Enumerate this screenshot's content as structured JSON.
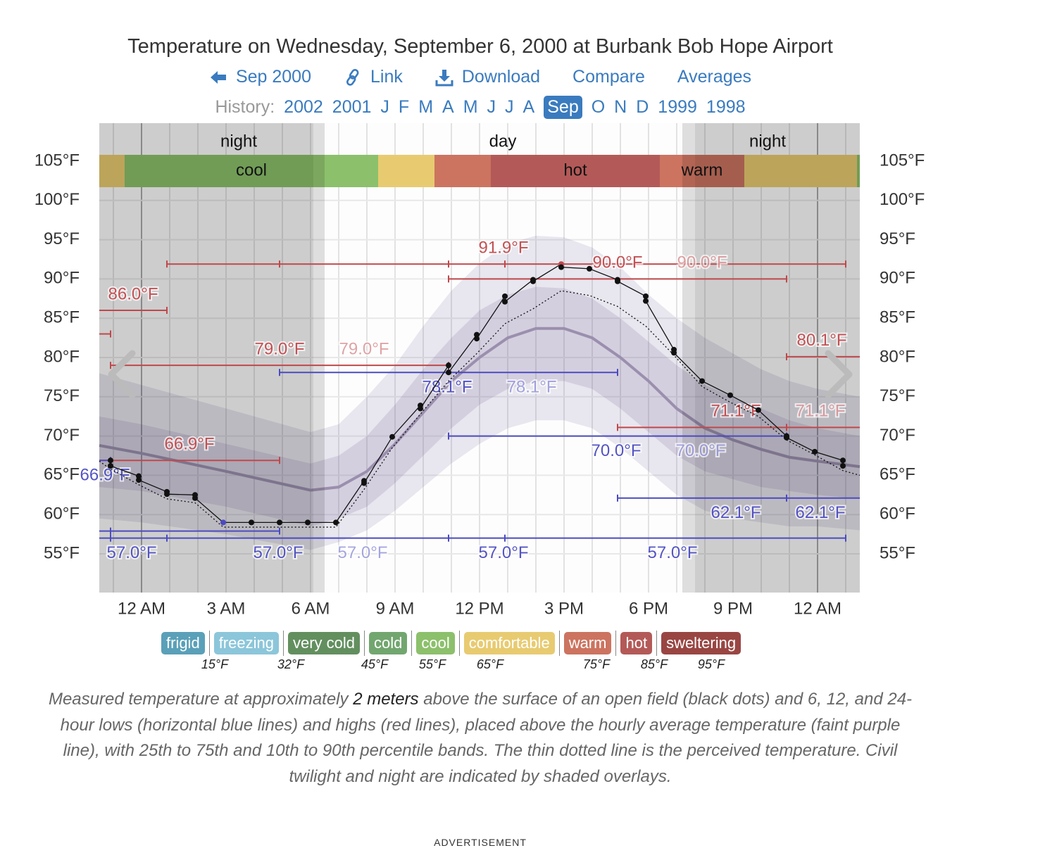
{
  "header": {
    "title": "Temperature on Wednesday, September 6, 2000 at Burbank Bob Hope Airport",
    "nav": {
      "back": "Sep 2000",
      "link": "Link",
      "download": "Download",
      "compare": "Compare",
      "averages": "Averages"
    },
    "history_label": "History:",
    "history": [
      "2002",
      "2001",
      "J",
      "F",
      "M",
      "A",
      "M",
      "J",
      "J",
      "A",
      "Sep",
      "O",
      "N",
      "D",
      "1999",
      "1998"
    ],
    "history_current": "Sep"
  },
  "chart_data": {
    "type": "line",
    "title": "Temperature on Wednesday, September 6, 2000 at Burbank Bob Hope Airport",
    "xlabel": "",
    "ylabel": "",
    "xlim_hours": [
      -1.5,
      25.5
    ],
    "ylim": [
      50,
      108
    ],
    "grid": true,
    "x_ticks": [
      {
        "h": 0,
        "label": "12 AM"
      },
      {
        "h": 3,
        "label": "3 AM"
      },
      {
        "h": 6,
        "label": "6 AM"
      },
      {
        "h": 9,
        "label": "9 AM"
      },
      {
        "h": 12,
        "label": "12 PM"
      },
      {
        "h": 15,
        "label": "3 PM"
      },
      {
        "h": 18,
        "label": "6 PM"
      },
      {
        "h": 21,
        "label": "9 PM"
      },
      {
        "h": 24,
        "label": "12 AM"
      }
    ],
    "y_ticks": [
      {
        "t": 105,
        "label": "105°F"
      },
      {
        "t": 100,
        "label": "100°F"
      },
      {
        "t": 95,
        "label": "95°F"
      },
      {
        "t": 90,
        "label": "90°F"
      },
      {
        "t": 85,
        "label": "85°F"
      },
      {
        "t": 80,
        "label": "80°F"
      },
      {
        "t": 75,
        "label": "75°F"
      },
      {
        "t": 70,
        "label": "70°F"
      },
      {
        "t": 65,
        "label": "65°F"
      },
      {
        "t": 60,
        "label": "60°F"
      },
      {
        "t": 55,
        "label": "55°F"
      }
    ],
    "daylight": [
      {
        "label": "night",
        "from": -1.5,
        "to": 6.1,
        "twilight_to": 6.5
      },
      {
        "label": "day",
        "from": 6.5,
        "to": 19.2
      },
      {
        "label": "night",
        "from": 19.65,
        "to": 25.5,
        "twilight_from": 19.2
      }
    ],
    "categories_bar": [
      {
        "from": -1.5,
        "to": -0.6,
        "cat": "comfortable"
      },
      {
        "from": -0.6,
        "to": 8.4,
        "cat": "cool",
        "label": "cool",
        "label_at": 3.9
      },
      {
        "from": 8.4,
        "to": 10.4,
        "cat": "comfortable"
      },
      {
        "from": 10.4,
        "to": 12.4,
        "cat": "warm"
      },
      {
        "from": 12.4,
        "to": 18.4,
        "cat": "hot",
        "label": "hot",
        "label_at": 15.4
      },
      {
        "from": 18.4,
        "to": 21.4,
        "cat": "warm",
        "label": "warm",
        "label_at": 19.9
      },
      {
        "from": 21.4,
        "to": 25.4,
        "cat": "comfortable"
      },
      {
        "from": 25.4,
        "to": 25.5,
        "cat": "cool"
      }
    ],
    "normals": {
      "columns": [
        "hour",
        "p10",
        "p25",
        "avg",
        "p75",
        "p90"
      ],
      "rows": [
        [
          -1.5,
          59.5,
          63.5,
          68.8,
          72.5,
          78
        ],
        [
          0,
          59,
          63,
          67.8,
          71.5,
          76.5
        ],
        [
          3,
          57.5,
          61,
          65.5,
          69,
          73.5
        ],
        [
          6,
          55.5,
          58.5,
          63.1,
          66.5,
          70.5
        ],
        [
          7,
          56.5,
          59.5,
          63.5,
          67.5,
          71.5
        ],
        [
          8,
          58,
          61,
          65.5,
          70,
          75
        ],
        [
          9,
          60.5,
          64,
          69,
          74,
          79
        ],
        [
          10,
          63.5,
          67.5,
          73,
          78.5,
          84
        ],
        [
          11,
          66.5,
          71,
          77,
          82.5,
          88.5
        ],
        [
          12,
          69,
          74,
          80,
          86,
          92
        ],
        [
          13,
          71,
          76,
          82.5,
          88,
          94.5
        ],
        [
          14,
          72,
          77,
          83.7,
          89,
          95.5
        ],
        [
          15,
          72,
          77,
          83.7,
          88.8,
          95.3
        ],
        [
          16,
          71,
          76,
          82.5,
          87.5,
          94
        ],
        [
          17,
          68.5,
          73.5,
          80,
          85,
          91.5
        ],
        [
          18,
          65.5,
          70.5,
          77,
          82,
          88
        ],
        [
          19,
          62.5,
          67.5,
          73.5,
          79,
          85
        ],
        [
          20,
          60.5,
          65.5,
          71,
          76.5,
          82.5
        ],
        [
          21,
          59.5,
          64.5,
          69.5,
          75,
          80.5
        ],
        [
          22,
          59,
          63.5,
          68.3,
          73.5,
          78.5
        ],
        [
          23,
          58.5,
          63,
          67.3,
          72,
          77
        ],
        [
          24,
          58.5,
          62.5,
          66.8,
          71,
          76
        ],
        [
          25.5,
          58,
          62,
          66.1,
          70,
          75
        ]
      ]
    },
    "observations": [
      [
        -1.1,
        66.9
      ],
      [
        -1.1,
        66.2
      ],
      [
        -0.1,
        64.9
      ],
      [
        -0.1,
        64.4
      ],
      [
        0.9,
        62.9
      ],
      [
        0.9,
        62.6
      ],
      [
        1.9,
        62.5
      ],
      [
        1.9,
        62.1
      ],
      [
        2.9,
        59.0
      ],
      [
        3.9,
        59.0
      ],
      [
        4.9,
        59.0
      ],
      [
        5.9,
        59.0
      ],
      [
        6.9,
        59.0
      ],
      [
        7.9,
        64.3
      ],
      [
        7.9,
        64.0
      ],
      [
        8.9,
        69.9
      ],
      [
        9.9,
        73.9
      ],
      [
        9.9,
        73.5
      ],
      [
        10.9,
        79.0
      ],
      [
        10.9,
        78.1
      ],
      [
        11.9,
        82.9
      ],
      [
        11.9,
        82.4
      ],
      [
        12.9,
        87.8
      ],
      [
        12.9,
        87.1
      ],
      [
        13.9,
        89.9
      ],
      [
        13.9,
        89.7
      ],
      [
        14.9,
        91.9
      ],
      [
        14.9,
        91.5
      ],
      [
        15.9,
        91.3
      ],
      [
        16.9,
        89.9
      ],
      [
        16.9,
        89.7
      ],
      [
        17.9,
        87.8
      ],
      [
        17.9,
        87.2
      ],
      [
        18.9,
        81.0
      ],
      [
        18.9,
        80.6
      ],
      [
        19.9,
        77.0
      ],
      [
        20.9,
        75.2
      ],
      [
        21.9,
        73.3
      ],
      [
        22.9,
        70.0
      ],
      [
        22.9,
        69.8
      ],
      [
        23.9,
        68.0
      ],
      [
        24.9,
        66.9
      ],
      [
        24.9,
        66.2
      ]
    ],
    "min_obs_index": 8,
    "max_obs_index": 26,
    "perceived": [
      [
        -1.5,
        66.8
      ],
      [
        -1.1,
        65.8
      ],
      [
        -0.1,
        63.8
      ],
      [
        0.9,
        62.0
      ],
      [
        1.9,
        61.5
      ],
      [
        2.9,
        58.4
      ],
      [
        6.9,
        58.4
      ],
      [
        7.9,
        63.2
      ],
      [
        8.9,
        68.5
      ],
      [
        9.9,
        72.8
      ],
      [
        10.9,
        77
      ],
      [
        11.9,
        80.5
      ],
      [
        12.9,
        84.3
      ],
      [
        13.9,
        86.2
      ],
      [
        14.9,
        88.5
      ],
      [
        15.9,
        87.9
      ],
      [
        16.9,
        86.5
      ],
      [
        17.9,
        84
      ],
      [
        18.9,
        80.3
      ],
      [
        19.9,
        76.3
      ],
      [
        20.9,
        74.3
      ],
      [
        21.9,
        72.5
      ],
      [
        22.9,
        69.5
      ],
      [
        23.9,
        67.6
      ],
      [
        24.9,
        65.6
      ],
      [
        25.5,
        65
      ]
    ],
    "extremes": [
      {
        "kind": "high",
        "temp": 91.9,
        "from": 0.9,
        "to": 25,
        "ticks": [
          4.9,
          10.9,
          12.9
        ],
        "labels": [
          {
            "text": "91.9°F",
            "at": 12.85,
            "faded": false
          }
        ]
      },
      {
        "kind": "high",
        "temp": 86.0,
        "from": -1.5,
        "to": 0.9,
        "ticks": [],
        "labels": [
          {
            "text": "86.0°F",
            "at": -0.3,
            "faded": false
          }
        ]
      },
      {
        "kind": "high",
        "temp": 83.0,
        "from": -1.5,
        "to": -1.1,
        "ticks": [],
        "labels": []
      },
      {
        "kind": "high",
        "temp": 79.0,
        "from": -1.1,
        "to": 10.9,
        "ticks": [],
        "labels": [
          {
            "text": "79.0°F",
            "at": 4.9,
            "faded": false
          },
          {
            "text": "79.0°F",
            "at": 7.9,
            "faded": true
          }
        ]
      },
      {
        "kind": "high",
        "temp": 66.9,
        "from": -1.5,
        "to": 4.9,
        "ticks": [],
        "labels": [
          {
            "text": "66.9°F",
            "at": 1.7,
            "faded": false
          }
        ]
      },
      {
        "kind": "high",
        "temp": 90.0,
        "from": 10.9,
        "to": 22.9,
        "ticks": [],
        "labels": [
          {
            "text": "90.0°F",
            "at": 16.9,
            "faded": false
          },
          {
            "text": "90.0°F",
            "at": 19.9,
            "faded": true
          }
        ]
      },
      {
        "kind": "high",
        "temp": 71.1,
        "from": 16.9,
        "to": 25.5,
        "ticks": [
          22.9
        ],
        "labels": [
          {
            "text": "71.1°F",
            "at": 21.1,
            "faded": false
          },
          {
            "text": "71.1°F",
            "at": 24.1,
            "faded": true
          }
        ]
      },
      {
        "kind": "high",
        "temp": 80.1,
        "from": 22.9,
        "to": 25.5,
        "ticks": [],
        "labels": [
          {
            "text": "80.1°F",
            "at": 24.15,
            "faded": false
          }
        ]
      },
      {
        "kind": "low",
        "temp": 57.0,
        "from": -1.5,
        "to": 25,
        "ticks": [
          -1.1,
          0.9,
          10.9,
          12.9
        ],
        "labels": [
          {
            "text": "57.0°F",
            "at": -0.35,
            "faded": false
          },
          {
            "text": "57.0°F",
            "at": 4.85,
            "faded": false
          },
          {
            "text": "57.0°F",
            "at": 7.85,
            "faded": true
          },
          {
            "text": "57.0°F",
            "at": 12.85,
            "faded": false
          },
          {
            "text": "57.0°F",
            "at": 18.85,
            "faded": false
          }
        ]
      },
      {
        "kind": "low",
        "temp": 57.9,
        "from": -1.5,
        "to": 4.9,
        "ticks": [
          -1.1
        ],
        "labels": []
      },
      {
        "kind": "low",
        "temp": 78.1,
        "from": 4.9,
        "to": 16.9,
        "ticks": [],
        "labels": [
          {
            "text": "78.1°F",
            "at": 10.85,
            "faded": false
          },
          {
            "text": "78.1°F",
            "at": 13.85,
            "faded": true
          }
        ]
      },
      {
        "kind": "low",
        "temp": 70.0,
        "from": 10.9,
        "to": 22.9,
        "ticks": [],
        "labels": [
          {
            "text": "70.0°F",
            "at": 16.85,
            "faded": false
          },
          {
            "text": "70.0°F",
            "at": 19.85,
            "faded": true
          }
        ]
      },
      {
        "kind": "low",
        "temp": 62.1,
        "from": 16.9,
        "to": 25.5,
        "ticks": [
          22.9
        ],
        "labels": [
          {
            "text": "62.1°F",
            "at": 21.1,
            "faded": false
          },
          {
            "text": "62.1°F",
            "at": 24.1,
            "faded": false
          }
        ]
      },
      {
        "kind": "low",
        "temp": 66.9,
        "from": -1.5,
        "to": -1.1,
        "ticks": [],
        "labels": [
          {
            "text": "66.9°F",
            "at": -1.3,
            "faded": false
          }
        ]
      }
    ]
  },
  "legend": {
    "categories": [
      {
        "key": "frigid",
        "label": "frigid",
        "color": "#5aa0b8"
      },
      {
        "key": "freezing",
        "label": "freezing",
        "color": "#8cc6da"
      },
      {
        "key": "very_cold",
        "label": "very cold",
        "color": "#638f5f"
      },
      {
        "key": "cold",
        "label": "cold",
        "color": "#72a66f"
      },
      {
        "key": "cool",
        "label": "cool",
        "color": "#8cc06b"
      },
      {
        "key": "comfortable",
        "label": "comfortable",
        "color": "#e8cb71"
      },
      {
        "key": "warm",
        "label": "warm",
        "color": "#cc7460"
      },
      {
        "key": "hot",
        "label": "hot",
        "color": "#b35a58"
      },
      {
        "key": "sweltering",
        "label": "sweltering",
        "color": "#994643"
      }
    ],
    "thresholds": [
      "15°F",
      "32°F",
      "45°F",
      "55°F",
      "65°F",
      "75°F",
      "85°F",
      "95°F"
    ]
  },
  "caption": {
    "part1": "Measured temperature at approximately ",
    "bold": "2 meters",
    "part2": " above the surface of an open field (black dots) and 6, 12, and 24-hour lows (horizontal blue lines) and highs (red lines), placed above the hourly average temperature (faint purple line), with 25th to 75th and 10th to 90th percentile bands. The thin dotted line is the perceived temperature. Civil twilight and night are indicated by shaded overlays."
  },
  "advertisement": "ADVERTISEMENT",
  "colors": {
    "link": "#3a7bbf",
    "high": "#c0484b",
    "low": "#4b4bc0",
    "avg": "#9b8fae",
    "band": "#5a4a8a"
  }
}
